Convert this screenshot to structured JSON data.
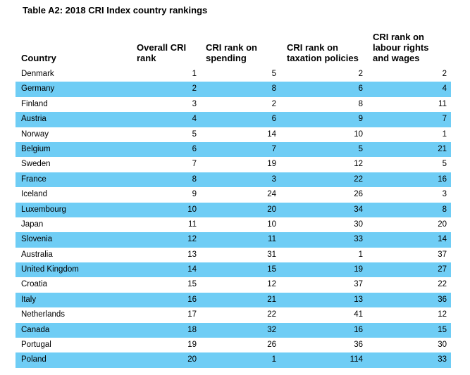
{
  "title": "Table A2: 2018 CRI Index country rankings",
  "headers": {
    "country": "Country",
    "overall": [
      "Overall CRI",
      "rank"
    ],
    "spending": [
      "CRI rank on",
      "spending"
    ],
    "tax": [
      "CRI rank on",
      "taxation policies"
    ],
    "labour": [
      "CRI rank on",
      "labour rights",
      "and wages"
    ]
  },
  "colors": {
    "row_shade": "#6fcdf5"
  },
  "rows": [
    {
      "country": "Denmark",
      "overall": "1",
      "spending": "5",
      "tax": "2",
      "labour": "2"
    },
    {
      "country": "Germany",
      "overall": "2",
      "spending": "8",
      "tax": "6",
      "labour": "4"
    },
    {
      "country": "Finland",
      "overall": "3",
      "spending": "2",
      "tax": "8",
      "labour": "11"
    },
    {
      "country": "Austria",
      "overall": "4",
      "spending": "6",
      "tax": "9",
      "labour": "7"
    },
    {
      "country": "Norway",
      "overall": "5",
      "spending": "14",
      "tax": "10",
      "labour": "1"
    },
    {
      "country": "Belgium",
      "overall": "6",
      "spending": "7",
      "tax": "5",
      "labour": "21"
    },
    {
      "country": "Sweden",
      "overall": "7",
      "spending": "19",
      "tax": "12",
      "labour": "5"
    },
    {
      "country": "France",
      "overall": "8",
      "spending": "3",
      "tax": "22",
      "labour": "16"
    },
    {
      "country": "Iceland",
      "overall": "9",
      "spending": "24",
      "tax": "26",
      "labour": "3"
    },
    {
      "country": "Luxembourg",
      "overall": "10",
      "spending": "20",
      "tax": "34",
      "labour": "8"
    },
    {
      "country": "Japan",
      "overall": "11",
      "spending": "10",
      "tax": "30",
      "labour": "20"
    },
    {
      "country": "Slovenia",
      "overall": "12",
      "spending": "11",
      "tax": "33",
      "labour": "14"
    },
    {
      "country": "Australia",
      "overall": "13",
      "spending": "31",
      "tax": "1",
      "labour": "37"
    },
    {
      "country": "United Kingdom",
      "overall": "14",
      "spending": "15",
      "tax": "19",
      "labour": "27"
    },
    {
      "country": "Croatia",
      "overall": "15",
      "spending": "12",
      "tax": "37",
      "labour": "22"
    },
    {
      "country": "Italy",
      "overall": "16",
      "spending": "21",
      "tax": "13",
      "labour": "36"
    },
    {
      "country": "Netherlands",
      "overall": "17",
      "spending": "22",
      "tax": "41",
      "labour": "12"
    },
    {
      "country": "Canada",
      "overall": "18",
      "spending": "32",
      "tax": "16",
      "labour": "15"
    },
    {
      "country": "Portugal",
      "overall": "19",
      "spending": "26",
      "tax": "36",
      "labour": "30"
    },
    {
      "country": "Poland",
      "overall": "20",
      "spending": "1",
      "tax": "114",
      "labour": "33"
    }
  ]
}
